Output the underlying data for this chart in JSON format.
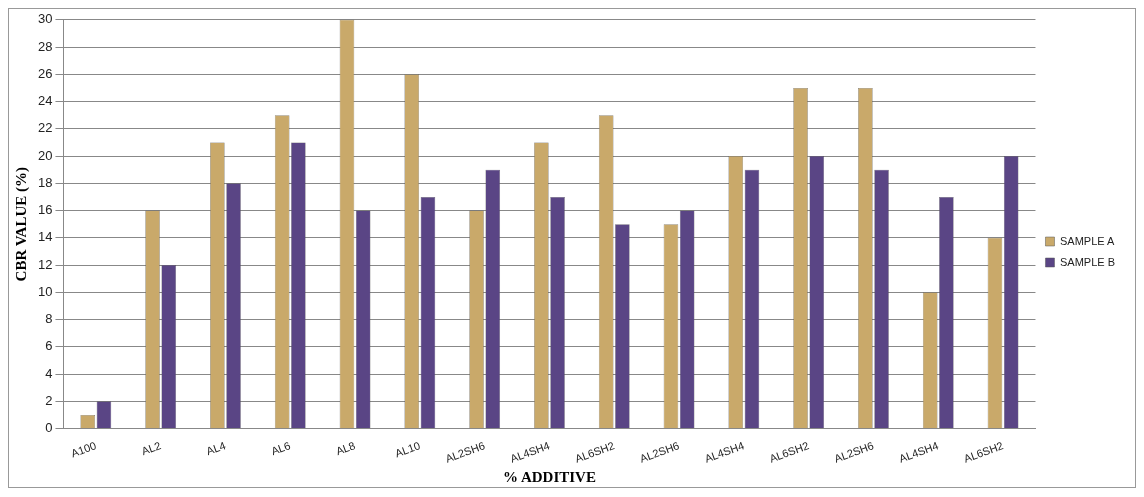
{
  "chart_data": {
    "type": "bar",
    "xlabel": "% ADDITIVE",
    "ylabel": "CBR VALUE (%)",
    "categories": [
      "A100",
      "AL2",
      "AL4",
      "AL6",
      "AL8",
      "AL10",
      "AL2SH6",
      "AL4SH4",
      "AL6SH2",
      "AL2SH6",
      "AL4SH4",
      "AL6SH2",
      "AL2SH6",
      "AL4SH4",
      "AL6SH2"
    ],
    "series": [
      {
        "name": "SAMPLE A",
        "color": "#c9a96a",
        "values": [
          1,
          16,
          21,
          23,
          30,
          26,
          16,
          21,
          23,
          15,
          20,
          25,
          25,
          10,
          14
        ]
      },
      {
        "name": "SAMPLE B",
        "color": "#5a4585",
        "values": [
          2,
          12,
          18,
          21,
          16,
          17,
          19,
          17,
          15,
          16,
          19,
          20,
          19,
          17,
          20
        ]
      }
    ],
    "ylim": [
      0,
      30
    ],
    "yticks": [
      0,
      2,
      4,
      6,
      8,
      10,
      12,
      14,
      16,
      18,
      20,
      22,
      24,
      26,
      28,
      30
    ],
    "grid": "y",
    "legend": "right"
  }
}
